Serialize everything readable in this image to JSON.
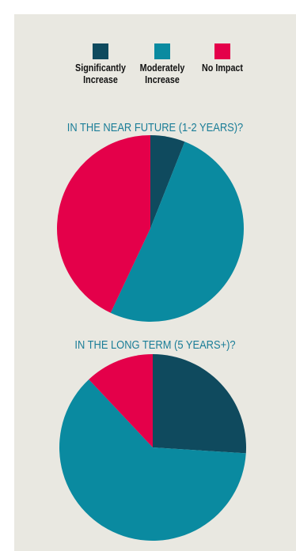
{
  "colors": {
    "panel_bg": "#e9e8e1",
    "significantly_increase": "#0f4a5e",
    "moderately_increase": "#0a8aa0",
    "no_impact": "#e4004a",
    "title_color": "#1a7d97"
  },
  "legend": [
    {
      "label": "Significantly\nIncrease",
      "color": "#0f4a5e"
    },
    {
      "label": "Moderately\nIncrease",
      "color": "#0a8aa0"
    },
    {
      "label": "No Impact",
      "color": "#e4004a"
    }
  ],
  "chart_data": [
    {
      "type": "pie",
      "title": "IN THE NEAR FUTURE (1-2 YEARS)?",
      "series": [
        {
          "name": "Significantly Increase",
          "value": 6,
          "color": "#0f4a5e"
        },
        {
          "name": "Moderately Increase",
          "value": 51,
          "color": "#0a8aa0"
        },
        {
          "name": "No Impact",
          "value": 43,
          "color": "#e4004a"
        }
      ]
    },
    {
      "type": "pie",
      "title": "IN THE LONG TERM (5 YEARS+)?",
      "series": [
        {
          "name": "Significantly Increase",
          "value": 26,
          "color": "#0f4a5e"
        },
        {
          "name": "Moderately Increase",
          "value": 62,
          "color": "#0a8aa0"
        },
        {
          "name": "No Impact",
          "value": 12,
          "color": "#e4004a"
        }
      ]
    }
  ]
}
